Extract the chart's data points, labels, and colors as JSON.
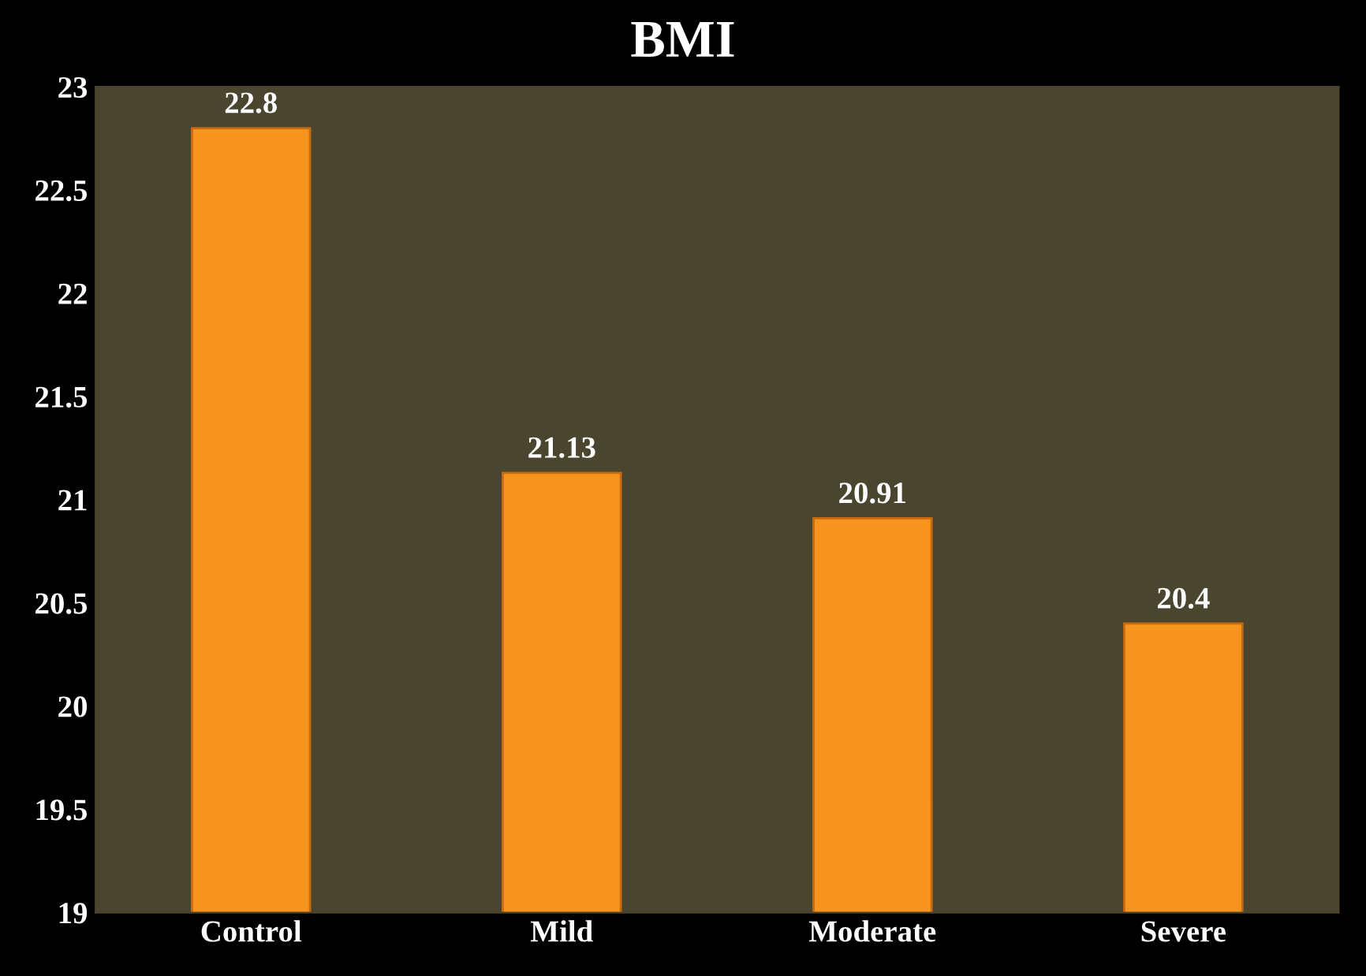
{
  "chart_data": {
    "type": "bar",
    "title": "BMI",
    "categories": [
      "Control",
      "Mild",
      "Moderate",
      "Severe"
    ],
    "values": [
      22.8,
      21.13,
      20.91,
      20.4
    ],
    "color": "#f7941d",
    "value_labels": [
      "22.8",
      "21.13",
      "20.91",
      "20.4"
    ],
    "ylim": [
      19,
      23
    ],
    "yticks": [
      19,
      19.5,
      20,
      20.5,
      21,
      21.5,
      22,
      22.5,
      23
    ],
    "grid": false,
    "legend": false
  }
}
